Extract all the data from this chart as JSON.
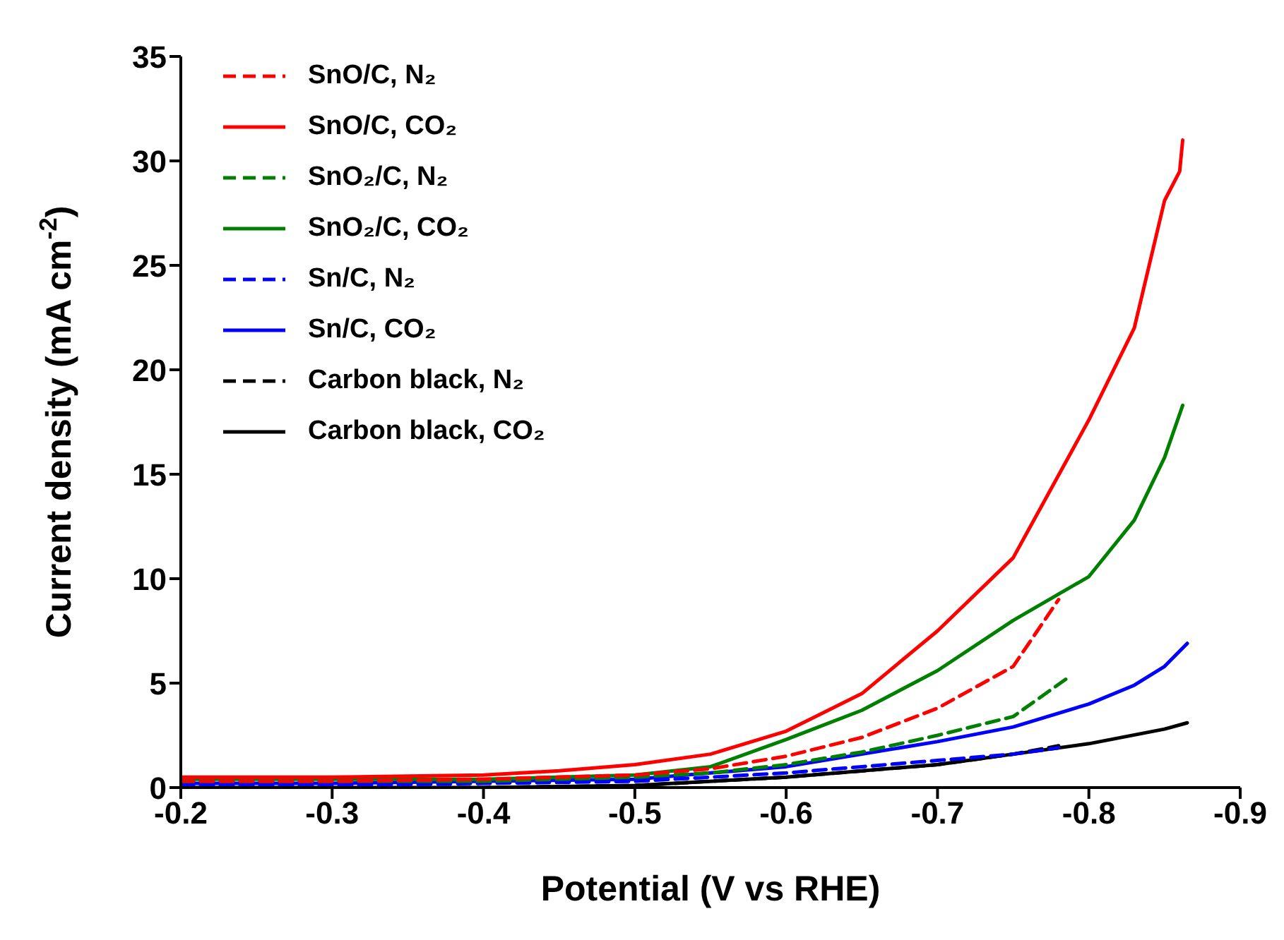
{
  "chart_data": {
    "type": "line",
    "xlabel": "Potential (V vs RHE)",
    "ylabel": "Current density (mA cm$^{-2}$)",
    "xlim": [
      -0.2,
      -0.9
    ],
    "xticks": [
      -0.2,
      -0.3,
      -0.4,
      -0.5,
      -0.6,
      -0.7,
      -0.8,
      -0.9
    ],
    "ylim": [
      0,
      35
    ],
    "yticks": [
      0,
      5,
      10,
      15,
      20,
      25,
      30,
      35
    ],
    "legend": "top left",
    "marker": "none",
    "series": [
      {
        "name": "SnO/C, N₂",
        "color": "#ff0000",
        "line_style": "dashed",
        "x": [
          -0.2,
          -0.3,
          -0.4,
          -0.5,
          -0.55,
          -0.6,
          -0.65,
          -0.7,
          -0.75,
          -0.78
        ],
        "values": [
          0.3,
          0.3,
          0.4,
          0.6,
          0.9,
          1.5,
          2.4,
          3.8,
          5.8,
          9.0
        ]
      },
      {
        "name": "SnO/C, CO₂",
        "color": "#ff0000",
        "line_style": "solid",
        "x": [
          -0.2,
          -0.3,
          -0.4,
          -0.45,
          -0.5,
          -0.55,
          -0.6,
          -0.65,
          -0.7,
          -0.75,
          -0.8,
          -0.83,
          -0.85,
          -0.86,
          -0.862
        ],
        "values": [
          0.5,
          0.5,
          0.6,
          0.8,
          1.1,
          1.6,
          2.7,
          4.5,
          7.5,
          11.0,
          17.6,
          22.0,
          28.1,
          29.5,
          31.0
        ]
      },
      {
        "name": "SnO₂/C, N₂",
        "color": "#008000",
        "line_style": "dashed",
        "x": [
          -0.2,
          -0.3,
          -0.4,
          -0.5,
          -0.55,
          -0.6,
          -0.65,
          -0.7,
          -0.75,
          -0.785
        ],
        "values": [
          0.3,
          0.3,
          0.3,
          0.5,
          0.7,
          1.1,
          1.7,
          2.5,
          3.4,
          5.2
        ]
      },
      {
        "name": "SnO₂/C, CO₂",
        "color": "#008000",
        "line_style": "solid",
        "x": [
          -0.2,
          -0.3,
          -0.4,
          -0.5,
          -0.55,
          -0.6,
          -0.65,
          -0.7,
          -0.75,
          -0.8,
          -0.83,
          -0.85,
          -0.862
        ],
        "values": [
          0.4,
          0.4,
          0.4,
          0.6,
          1.0,
          2.3,
          3.7,
          5.6,
          8.0,
          10.1,
          12.8,
          15.8,
          18.3
        ]
      },
      {
        "name": "Sn/C, N₂",
        "color": "#0000ff",
        "line_style": "dashed",
        "x": [
          -0.2,
          -0.3,
          -0.4,
          -0.5,
          -0.6,
          -0.65,
          -0.7,
          -0.75,
          -0.78
        ],
        "values": [
          0.1,
          0.1,
          0.2,
          0.3,
          0.7,
          1.0,
          1.3,
          1.6,
          1.9
        ]
      },
      {
        "name": "Sn/C, CO₂",
        "color": "#0000ff",
        "line_style": "solid",
        "x": [
          -0.2,
          -0.3,
          -0.4,
          -0.5,
          -0.6,
          -0.65,
          -0.7,
          -0.75,
          -0.8,
          -0.83,
          -0.85,
          -0.865
        ],
        "values": [
          0.2,
          0.2,
          0.3,
          0.4,
          1.0,
          1.6,
          2.2,
          2.9,
          4.0,
          4.9,
          5.8,
          6.9
        ]
      },
      {
        "name": "Carbon black, N₂",
        "color": "#000000",
        "line_style": "dashed",
        "x": [
          -0.2,
          -0.3,
          -0.4,
          -0.5,
          -0.6,
          -0.7,
          -0.75,
          -0.78
        ],
        "values": [
          0.0,
          0.0,
          0.0,
          0.1,
          0.5,
          1.1,
          1.6,
          2.0
        ]
      },
      {
        "name": "Carbon black, CO₂",
        "color": "#000000",
        "line_style": "solid",
        "x": [
          -0.2,
          -0.3,
          -0.4,
          -0.5,
          -0.6,
          -0.7,
          -0.75,
          -0.8,
          -0.85,
          -0.865
        ],
        "values": [
          0.0,
          0.0,
          0.0,
          0.1,
          0.5,
          1.1,
          1.6,
          2.1,
          2.8,
          3.1
        ]
      }
    ]
  }
}
